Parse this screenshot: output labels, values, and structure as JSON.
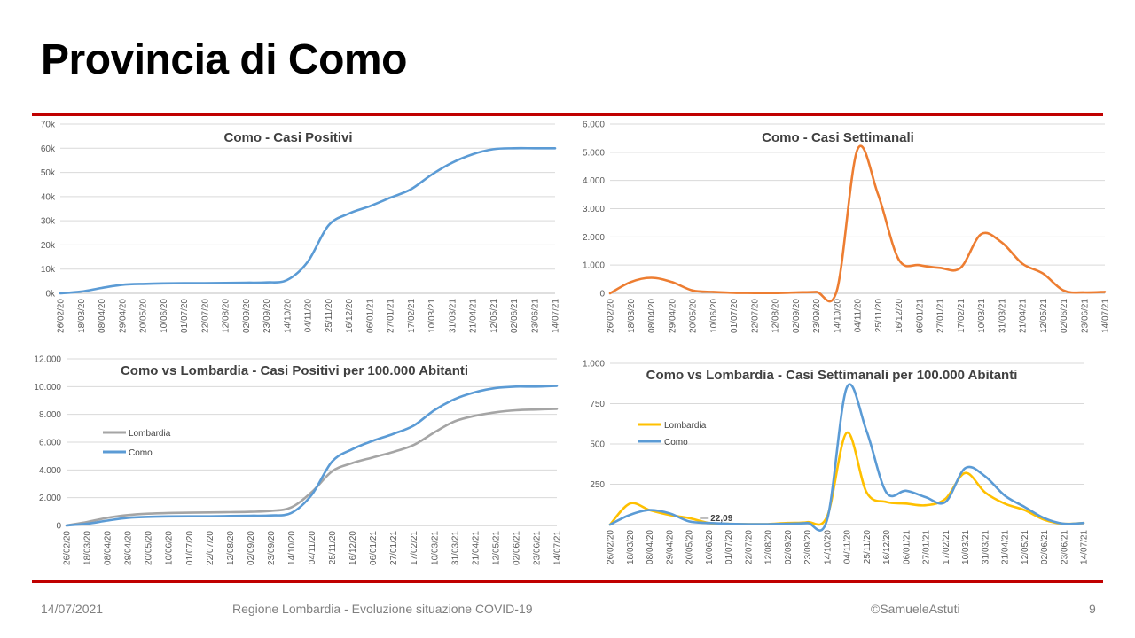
{
  "slide": {
    "title": "Provincia di Como",
    "footer_date": "14/07/2021",
    "footer_source": "Regione Lombardia - Evoluzione situazione COVID-19",
    "footer_author": "©SamueleAstuti",
    "page_number": "9"
  },
  "colors": {
    "rule": "#c00000",
    "como_blue": "#5b9bd5",
    "weekly_orange": "#ed7d31",
    "lombardia_gray": "#a5a5a5",
    "lombardia_yellow": "#ffc000"
  },
  "x_dates": [
    "26/02/20",
    "18/03/20",
    "08/04/20",
    "29/04/20",
    "20/05/20",
    "10/06/20",
    "01/07/20",
    "22/07/20",
    "12/08/20",
    "02/09/20",
    "23/09/20",
    "14/10/20",
    "04/11/20",
    "25/11/20",
    "16/12/20",
    "06/01/21",
    "27/01/21",
    "17/02/21",
    "10/03/21",
    "31/03/21",
    "21/04/21",
    "12/05/21",
    "02/06/21",
    "23/06/21",
    "14/07/21"
  ],
  "chart_data": [
    {
      "type": "line",
      "title": "Como - Casi Positivi",
      "ylim": [
        0,
        70000
      ],
      "y_ticks": [
        "0k",
        "10k",
        "20k",
        "30k",
        "40k",
        "50k",
        "60k",
        "70k"
      ],
      "grid": true,
      "legend": "none",
      "series": [
        {
          "values": [
            0,
            700,
            2200,
            3500,
            3900,
            4100,
            4200,
            4200,
            4300,
            4400,
            4500,
            5500,
            13000,
            28000,
            33000,
            36000,
            39500,
            43000,
            49000,
            54000,
            57500,
            59600,
            60000,
            60000,
            60000
          ]
        }
      ]
    },
    {
      "type": "line",
      "title": "Como - Casi Settimanali",
      "ylim": [
        0,
        6000
      ],
      "y_ticks": [
        "0",
        "1.000",
        "2.000",
        "3.000",
        "4.000",
        "5.000",
        "6.000"
      ],
      "grid": true,
      "legend": "none",
      "series": [
        {
          "values": [
            0,
            400,
            550,
            400,
            100,
            50,
            20,
            10,
            10,
            30,
            50,
            100,
            5100,
            3500,
            1200,
            1000,
            900,
            900,
            2100,
            1800,
            1050,
            700,
            100,
            30,
            50
          ]
        }
      ]
    },
    {
      "type": "line",
      "title": "Como vs Lombardia - Casi Positivi per 100.000 Abitanti",
      "ylim": [
        0,
        12000
      ],
      "y_ticks": [
        "0",
        "2.000",
        "4.000",
        "6.000",
        "8.000",
        "10.000",
        "12.000"
      ],
      "grid": true,
      "legend": "left",
      "series": [
        {
          "name": "Lombardia",
          "values": [
            0,
            250,
            550,
            750,
            850,
            900,
            920,
            940,
            960,
            980,
            1050,
            1300,
            2400,
            3900,
            4500,
            4900,
            5300,
            5800,
            6700,
            7500,
            7900,
            8150,
            8300,
            8350,
            8400
          ]
        },
        {
          "name": "Como",
          "values": [
            0,
            120,
            350,
            550,
            620,
            650,
            660,
            660,
            680,
            700,
            720,
            900,
            2200,
            4600,
            5500,
            6100,
            6600,
            7200,
            8300,
            9100,
            9600,
            9900,
            10000,
            10000,
            10050
          ]
        }
      ]
    },
    {
      "type": "line",
      "title": "Como vs Lombardia - Casi Settimanali per 100.000 Abitanti",
      "ylim": [
        0,
        1000
      ],
      "y_ticks": [
        "-",
        "250",
        "500",
        "750",
        "1.000"
      ],
      "grid": true,
      "legend": "left",
      "annotation": "22,09",
      "series": [
        {
          "name": "Lombardia",
          "values": [
            0,
            130,
            90,
            60,
            40,
            10,
            5,
            3,
            3,
            10,
            15,
            50,
            570,
            200,
            140,
            130,
            120,
            160,
            320,
            200,
            130,
            90,
            30,
            5,
            10
          ]
        },
        {
          "name": "Como",
          "values": [
            0,
            60,
            90,
            70,
            20,
            10,
            5,
            3,
            3,
            5,
            10,
            30,
            850,
            580,
            200,
            210,
            170,
            140,
            350,
            300,
            180,
            110,
            40,
            5,
            10
          ]
        }
      ]
    }
  ]
}
